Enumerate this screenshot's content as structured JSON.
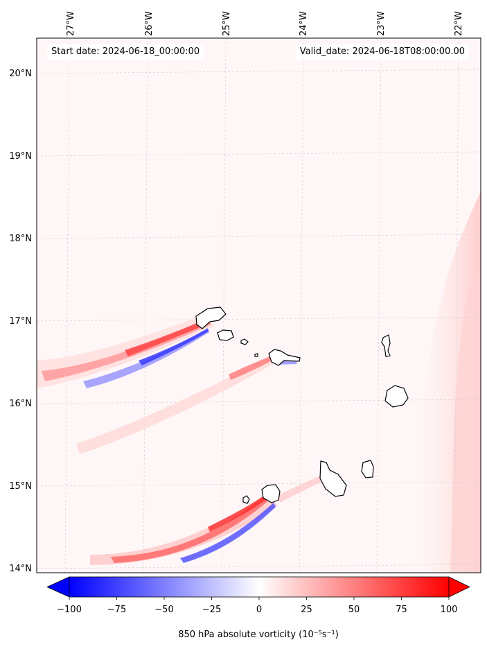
{
  "map": {
    "header": {
      "start_date": "Start date: 2024-06-18_00:00:00",
      "valid_date": "Valid_date: 2024-06-18T08:00:00.00"
    },
    "longitude_labels": [
      "27°W",
      "26°W",
      "25°W",
      "24°W",
      "23°W",
      "22°W"
    ],
    "latitude_labels": [
      "20°N",
      "19°N",
      "18°N",
      "17°N",
      "16°N",
      "15°N",
      "14°N"
    ],
    "colorbar": {
      "ticks": [
        "−100",
        "−75",
        "−50",
        "−25",
        "0",
        "25",
        "50",
        "75",
        "100"
      ],
      "label": "850 hPa absolute vorticity (10⁻⁵s⁻¹)",
      "colors": {
        "min": "#0000ff",
        "mid": "#ffffff",
        "max": "#ff0000"
      }
    }
  }
}
